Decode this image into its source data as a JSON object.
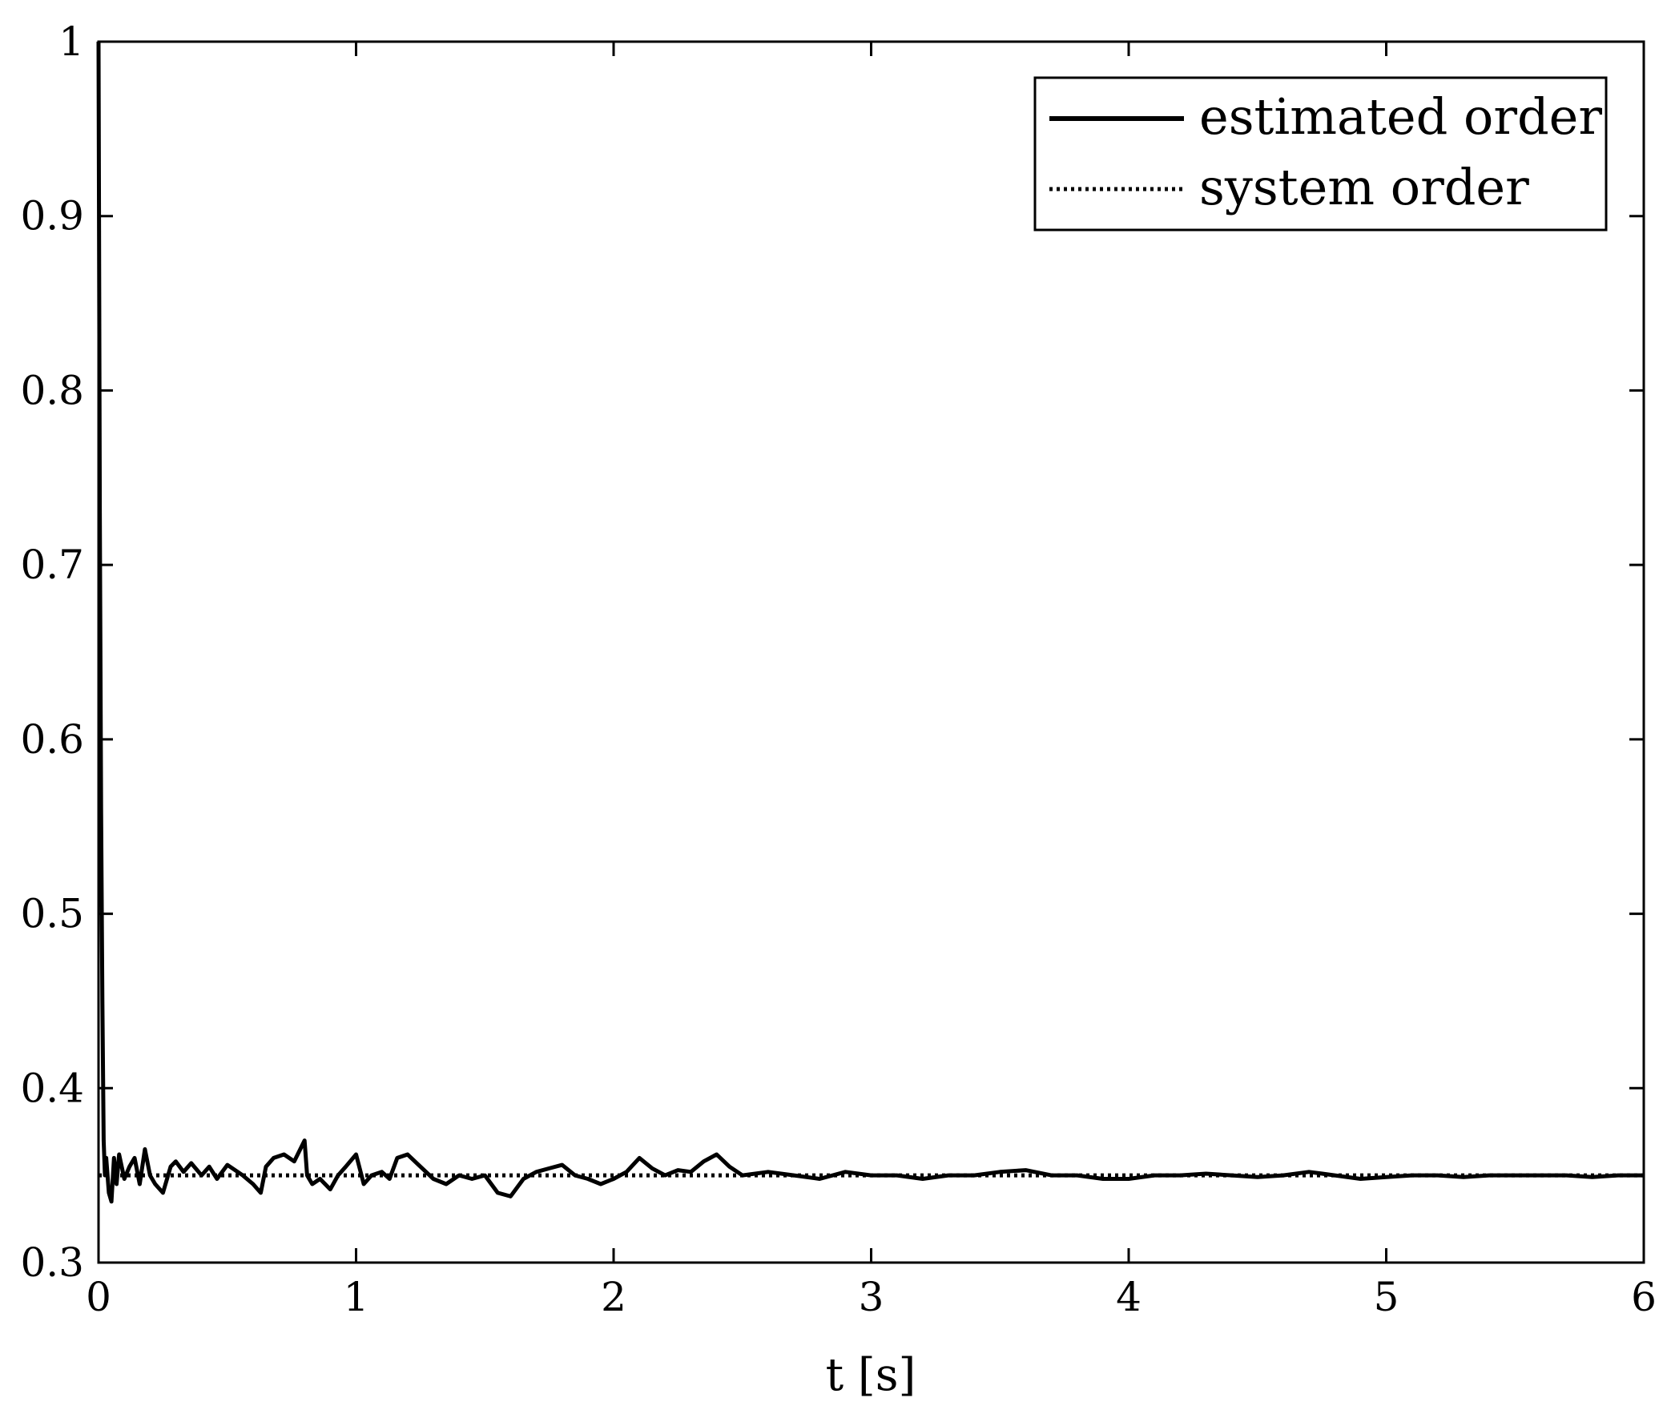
{
  "chart_data": {
    "type": "line",
    "title": "",
    "xlabel": "t [s]",
    "ylabel": "",
    "xlim": [
      0,
      6
    ],
    "ylim": [
      0.3,
      1
    ],
    "xticks": [
      0,
      1,
      2,
      3,
      4,
      5,
      6
    ],
    "yticks": [
      0.3,
      0.4,
      0.5,
      0.6,
      0.7,
      0.8,
      0.9,
      1
    ],
    "xtick_labels": [
      "0",
      "1",
      "2",
      "3",
      "4",
      "5",
      "6"
    ],
    "ytick_labels": [
      "0.3",
      "0.4",
      "0.5",
      "0.6",
      "0.7",
      "0.8",
      "0.9",
      "1"
    ],
    "grid": false,
    "legend_position": "top-right",
    "series": [
      {
        "name": "estimated order",
        "style": "solid",
        "color": "#000000",
        "x": [
          0,
          0.005,
          0.01,
          0.015,
          0.02,
          0.025,
          0.03,
          0.04,
          0.05,
          0.06,
          0.07,
          0.08,
          0.1,
          0.12,
          0.14,
          0.16,
          0.18,
          0.2,
          0.22,
          0.25,
          0.28,
          0.3,
          0.33,
          0.36,
          0.4,
          0.43,
          0.46,
          0.5,
          0.53,
          0.56,
          0.6,
          0.63,
          0.65,
          0.68,
          0.72,
          0.76,
          0.8,
          0.81,
          0.83,
          0.86,
          0.9,
          0.93,
          0.96,
          1.0,
          1.03,
          1.06,
          1.1,
          1.13,
          1.16,
          1.2,
          1.25,
          1.3,
          1.35,
          1.4,
          1.45,
          1.5,
          1.55,
          1.6,
          1.65,
          1.7,
          1.75,
          1.8,
          1.85,
          1.9,
          1.95,
          2.0,
          2.05,
          2.1,
          2.15,
          2.2,
          2.25,
          2.3,
          2.35,
          2.4,
          2.45,
          2.5,
          2.6,
          2.7,
          2.8,
          2.9,
          3.0,
          3.1,
          3.2,
          3.3,
          3.4,
          3.5,
          3.6,
          3.7,
          3.8,
          3.9,
          4.0,
          4.1,
          4.2,
          4.3,
          4.4,
          4.5,
          4.6,
          4.7,
          4.8,
          4.9,
          5.0,
          5.1,
          5.2,
          5.3,
          5.4,
          5.5,
          5.6,
          5.7,
          5.8,
          5.9,
          6.0
        ],
        "y": [
          1.0,
          0.73,
          0.56,
          0.45,
          0.37,
          0.35,
          0.36,
          0.34,
          0.335,
          0.36,
          0.345,
          0.362,
          0.348,
          0.355,
          0.36,
          0.345,
          0.365,
          0.35,
          0.345,
          0.34,
          0.355,
          0.358,
          0.352,
          0.357,
          0.35,
          0.355,
          0.348,
          0.356,
          0.353,
          0.35,
          0.345,
          0.34,
          0.355,
          0.36,
          0.362,
          0.358,
          0.37,
          0.35,
          0.345,
          0.348,
          0.342,
          0.35,
          0.355,
          0.362,
          0.345,
          0.35,
          0.352,
          0.348,
          0.36,
          0.362,
          0.355,
          0.348,
          0.345,
          0.35,
          0.348,
          0.35,
          0.34,
          0.338,
          0.348,
          0.352,
          0.354,
          0.356,
          0.35,
          0.348,
          0.345,
          0.348,
          0.352,
          0.36,
          0.354,
          0.35,
          0.353,
          0.352,
          0.358,
          0.362,
          0.355,
          0.35,
          0.352,
          0.35,
          0.348,
          0.352,
          0.35,
          0.35,
          0.348,
          0.35,
          0.35,
          0.352,
          0.353,
          0.35,
          0.35,
          0.348,
          0.348,
          0.35,
          0.35,
          0.351,
          0.35,
          0.349,
          0.35,
          0.352,
          0.35,
          0.348,
          0.349,
          0.35,
          0.35,
          0.349,
          0.35,
          0.35,
          0.35,
          0.35,
          0.349,
          0.35,
          0.35
        ]
      },
      {
        "name": "system order",
        "style": "dotted",
        "color": "#000000",
        "x": [
          0,
          6
        ],
        "y": [
          0.35,
          0.35
        ]
      }
    ]
  }
}
